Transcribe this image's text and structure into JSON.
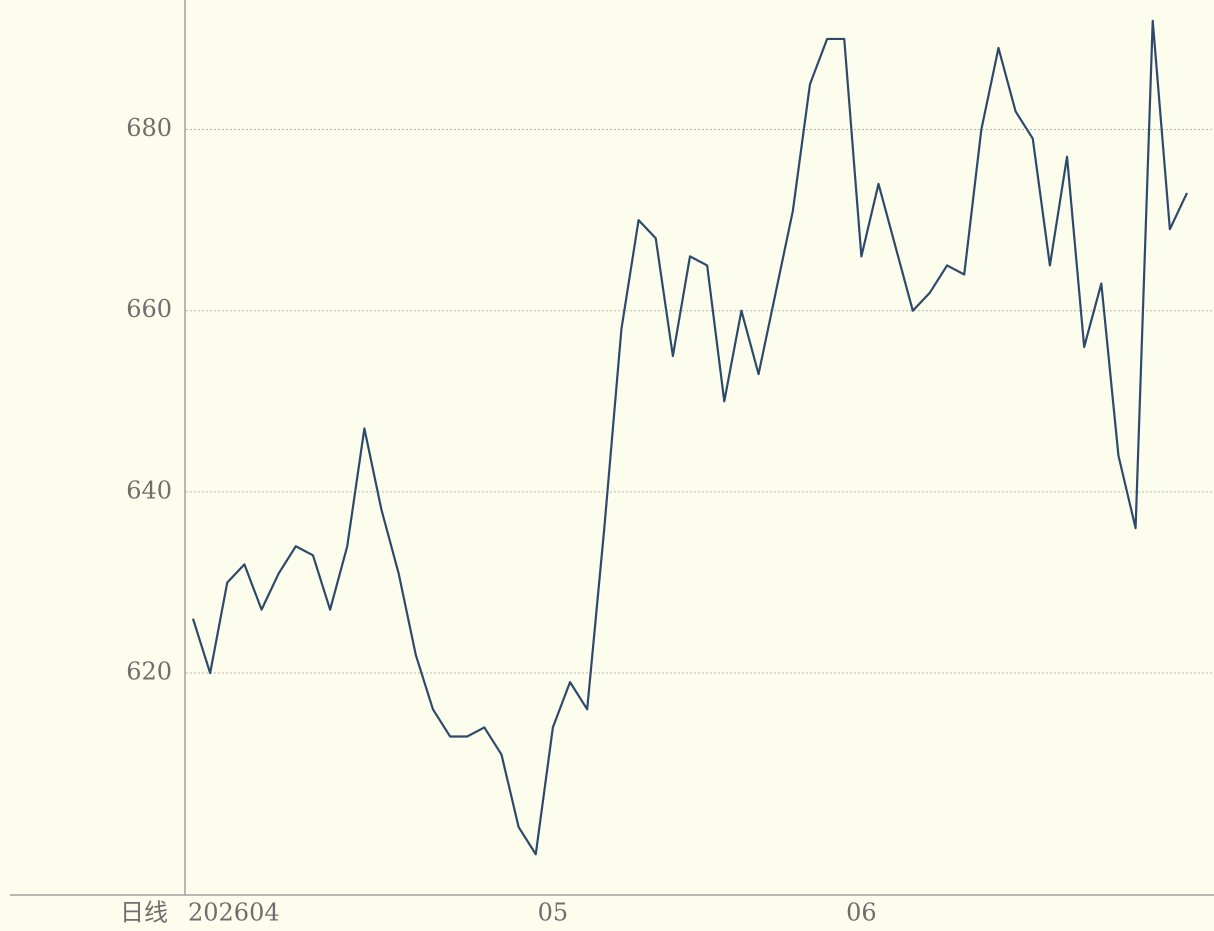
{
  "chart_data": {
    "type": "line",
    "period_label": "日线",
    "categories": [
      "202604",
      null,
      null,
      null,
      null,
      null,
      null,
      null,
      null,
      null,
      null,
      null,
      null,
      null,
      null,
      null,
      null,
      null,
      null,
      null,
      null,
      "05",
      null,
      null,
      null,
      null,
      null,
      null,
      null,
      null,
      null,
      null,
      null,
      null,
      null,
      null,
      null,
      null,
      null,
      "06",
      null,
      null,
      null,
      null,
      null,
      null,
      null,
      null,
      null,
      null,
      null,
      null,
      null,
      null,
      null,
      null,
      null,
      null,
      null
    ],
    "series": [
      {
        "color": "#2e4a6b",
        "values": [
          626,
          620,
          630,
          632,
          627,
          631,
          634,
          633,
          627,
          634,
          647,
          638,
          631,
          622,
          616,
          613,
          613,
          614,
          611,
          603,
          600,
          614,
          619,
          616,
          636,
          658,
          670,
          668,
          655,
          666,
          665,
          650,
          660,
          653,
          662,
          671,
          685,
          690,
          690,
          666,
          674,
          667,
          660,
          662,
          665,
          664,
          680,
          689,
          682,
          679,
          665,
          677,
          656,
          663,
          644,
          636,
          692,
          669,
          673
        ]
      }
    ],
    "ylim": [
      595.5,
      694.3
    ],
    "yticks": [
      620,
      640,
      660,
      680
    ],
    "grid": true
  }
}
